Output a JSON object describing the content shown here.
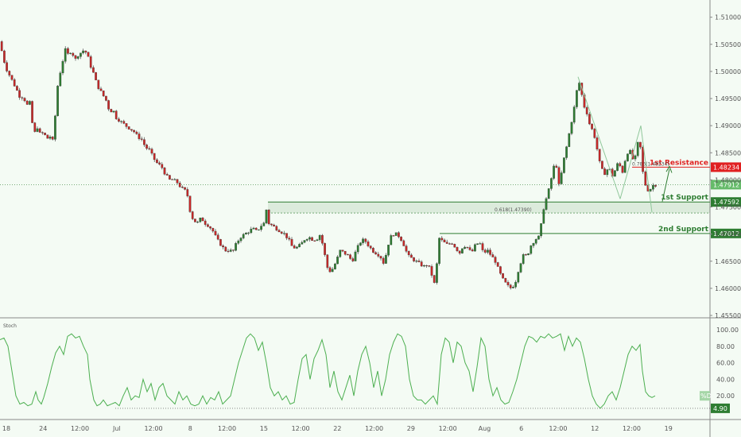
{
  "chart_data": {
    "type": "candlestick",
    "y_ticks": [
      "1.51000",
      "1.50500",
      "1.50000",
      "1.49500",
      "1.49000",
      "1.48500",
      "1.48000",
      "1.47500",
      "1.47000",
      "1.46500",
      "1.46000",
      "1.45500"
    ],
    "ylim": [
      1.455,
      1.512
    ],
    "x_ticks": [
      "18",
      "24",
      "12:00",
      "Jul",
      "12:00",
      "8",
      "12:00",
      "15",
      "12:00",
      "22",
      "12:00",
      "29",
      "12:00",
      "Aug",
      "6",
      "12:00",
      "12",
      "12:00",
      "19"
    ],
    "price_path": [
      [
        0,
        1.5055
      ],
      [
        3,
        1.505
      ],
      [
        5,
        1.503
      ],
      [
        10,
        1.5005
      ],
      [
        15,
        1.499
      ],
      [
        20,
        1.4975
      ],
      [
        25,
        1.496
      ],
      [
        28,
        1.495
      ],
      [
        31,
        1.4955
      ],
      [
        35,
        1.494
      ],
      [
        38,
        1.4935
      ],
      [
        40,
        1.4945
      ],
      [
        42,
        1.491
      ],
      [
        45,
        1.4885
      ],
      [
        50,
        1.49
      ],
      [
        53,
        1.488
      ],
      [
        57,
        1.489
      ],
      [
        60,
        1.4875
      ],
      [
        65,
        1.488
      ],
      [
        69,
        1.487
      ],
      [
        72,
        1.493
      ],
      [
        75,
        1.498
      ],
      [
        78,
        1.5
      ],
      [
        81,
        1.502
      ],
      [
        84,
        1.504
      ],
      [
        88,
        1.503
      ],
      [
        92,
        1.504
      ],
      [
        96,
        1.502
      ],
      [
        100,
        1.503
      ],
      [
        104,
        1.5035
      ],
      [
        108,
        1.504
      ],
      [
        112,
        1.503
      ],
      [
        116,
        1.501
      ],
      [
        120,
        1.4995
      ],
      [
        124,
        1.4975
      ],
      [
        128,
        1.4965
      ],
      [
        132,
        1.4955
      ],
      [
        136,
        1.4945
      ],
      [
        140,
        1.4925
      ],
      [
        144,
        1.493
      ],
      [
        148,
        1.4915
      ],
      [
        152,
        1.491
      ],
      [
        156,
        1.4905
      ],
      [
        160,
        1.49
      ],
      [
        165,
        1.4895
      ],
      [
        170,
        1.489
      ],
      [
        175,
        1.488
      ],
      [
        180,
        1.4875
      ],
      [
        185,
        1.486
      ],
      [
        190,
        1.4855
      ],
      [
        195,
        1.484
      ],
      [
        200,
        1.483
      ],
      [
        205,
        1.4825
      ],
      [
        210,
        1.481
      ],
      [
        215,
        1.48
      ],
      [
        220,
        1.48
      ],
      [
        225,
        1.4795
      ],
      [
        230,
        1.4785
      ],
      [
        235,
        1.478
      ],
      [
        238,
        1.477
      ],
      [
        242,
        1.4735
      ],
      [
        246,
        1.4725
      ],
      [
        250,
        1.472
      ],
      [
        255,
        1.473
      ],
      [
        260,
        1.472
      ],
      [
        265,
        1.4715
      ],
      [
        270,
        1.4705
      ],
      [
        275,
        1.469
      ],
      [
        280,
        1.468
      ],
      [
        285,
        1.467
      ],
      [
        290,
        1.467
      ],
      [
        295,
        1.4668
      ],
      [
        300,
        1.4685
      ],
      [
        305,
        1.4695
      ],
      [
        310,
        1.47
      ],
      [
        315,
        1.4705
      ],
      [
        320,
        1.471
      ],
      [
        325,
        1.4705
      ],
      [
        330,
        1.4715
      ],
      [
        334,
        1.472
      ],
      [
        337,
        1.4745
      ],
      [
        340,
        1.472
      ],
      [
        345,
        1.4715
      ],
      [
        350,
        1.471
      ],
      [
        355,
        1.4705
      ],
      [
        360,
        1.47
      ],
      [
        365,
        1.469
      ],
      [
        370,
        1.4675
      ],
      [
        375,
        1.4675
      ],
      [
        380,
        1.468
      ],
      [
        385,
        1.469
      ],
      [
        390,
        1.4695
      ],
      [
        395,
        1.469
      ],
      [
        400,
        1.469
      ],
      [
        405,
        1.47
      ],
      [
        410,
        1.4665
      ],
      [
        415,
        1.463
      ],
      [
        420,
        1.4635
      ],
      [
        425,
        1.465
      ],
      [
        430,
        1.467
      ],
      [
        435,
        1.4665
      ],
      [
        440,
        1.466
      ],
      [
        445,
        1.465
      ],
      [
        450,
        1.467
      ],
      [
        455,
        1.4685
      ],
      [
        460,
        1.469
      ],
      [
        465,
        1.468
      ],
      [
        470,
        1.467
      ],
      [
        475,
        1.4665
      ],
      [
        480,
        1.466
      ],
      [
        485,
        1.4645
      ],
      [
        490,
        1.468
      ],
      [
        495,
        1.47
      ],
      [
        500,
        1.47
      ],
      [
        505,
        1.4695
      ],
      [
        510,
        1.468
      ],
      [
        515,
        1.466
      ],
      [
        520,
        1.4655
      ],
      [
        525,
        1.465
      ],
      [
        530,
        1.4645
      ],
      [
        535,
        1.464
      ],
      [
        540,
        1.4645
      ],
      [
        545,
        1.4625
      ],
      [
        550,
        1.46
      ],
      [
        553,
        1.4695
      ],
      [
        556,
        1.469
      ],
      [
        560,
        1.4685
      ],
      [
        565,
        1.468
      ],
      [
        570,
        1.4685
      ],
      [
        575,
        1.4675
      ],
      [
        580,
        1.4665
      ],
      [
        585,
        1.468
      ],
      [
        590,
        1.4675
      ],
      [
        595,
        1.4665
      ],
      [
        600,
        1.468
      ],
      [
        605,
        1.4685
      ],
      [
        610,
        1.4665
      ],
      [
        615,
        1.467
      ],
      [
        620,
        1.466
      ],
      [
        625,
        1.465
      ],
      [
        630,
        1.463
      ],
      [
        635,
        1.4615
      ],
      [
        640,
        1.4605
      ],
      [
        645,
        1.46
      ],
      [
        650,
        1.461
      ],
      [
        655,
        1.464
      ],
      [
        660,
        1.466
      ],
      [
        665,
        1.466
      ],
      [
        670,
        1.468
      ],
      [
        675,
        1.469
      ],
      [
        680,
        1.4695
      ],
      [
        683,
        1.472
      ],
      [
        686,
        1.475
      ],
      [
        689,
        1.4765
      ],
      [
        692,
        1.478
      ],
      [
        695,
        1.48
      ],
      [
        698,
        1.482
      ],
      [
        701,
        1.484
      ],
      [
        704,
        1.4785
      ],
      [
        707,
        1.48
      ],
      [
        710,
        1.483
      ],
      [
        713,
        1.485
      ],
      [
        716,
        1.487
      ],
      [
        719,
        1.4895
      ],
      [
        722,
        1.4915
      ],
      [
        725,
        1.494
      ],
      [
        728,
        1.497
      ],
      [
        731,
        1.498
      ],
      [
        734,
        1.4955
      ],
      [
        737,
        1.4935
      ],
      [
        740,
        1.4925
      ],
      [
        743,
        1.4905
      ],
      [
        746,
        1.4895
      ],
      [
        749,
        1.4885
      ],
      [
        752,
        1.4865
      ],
      [
        755,
        1.484
      ],
      [
        758,
        1.482
      ],
      [
        761,
        1.4815
      ],
      [
        764,
        1.481
      ],
      [
        767,
        1.4825
      ],
      [
        770,
        1.4815
      ],
      [
        773,
        1.4805
      ],
      [
        776,
        1.482
      ],
      [
        779,
        1.483
      ],
      [
        782,
        1.4825
      ],
      [
        785,
        1.4815
      ],
      [
        788,
        1.4835
      ],
      [
        791,
        1.485
      ],
      [
        794,
        1.4855
      ],
      [
        797,
        1.484
      ],
      [
        800,
        1.4835
      ],
      [
        803,
        1.4855
      ],
      [
        806,
        1.4885
      ],
      [
        809,
        1.483
      ],
      [
        812,
        1.48
      ],
      [
        815,
        1.4785
      ],
      [
        818,
        1.478
      ],
      [
        821,
        1.4785
      ],
      [
        824,
        1.4791
      ]
    ],
    "stoch_path": [
      [
        0,
        88
      ],
      [
        5,
        90
      ],
      [
        10,
        80
      ],
      [
        15,
        50
      ],
      [
        20,
        20
      ],
      [
        25,
        10
      ],
      [
        30,
        12
      ],
      [
        35,
        8
      ],
      [
        40,
        10
      ],
      [
        45,
        25
      ],
      [
        48,
        15
      ],
      [
        52,
        10
      ],
      [
        55,
        18
      ],
      [
        60,
        35
      ],
      [
        65,
        55
      ],
      [
        70,
        72
      ],
      [
        75,
        80
      ],
      [
        80,
        70
      ],
      [
        85,
        92
      ],
      [
        90,
        95
      ],
      [
        95,
        90
      ],
      [
        100,
        92
      ],
      [
        105,
        80
      ],
      [
        110,
        70
      ],
      [
        113,
        40
      ],
      [
        118,
        15
      ],
      [
        122,
        8
      ],
      [
        126,
        10
      ],
      [
        130,
        15
      ],
      [
        135,
        8
      ],
      [
        140,
        10
      ],
      [
        145,
        12
      ],
      [
        150,
        8
      ],
      [
        155,
        20
      ],
      [
        160,
        30
      ],
      [
        165,
        15
      ],
      [
        170,
        20
      ],
      [
        175,
        18
      ],
      [
        180,
        40
      ],
      [
        185,
        25
      ],
      [
        190,
        35
      ],
      [
        195,
        15
      ],
      [
        200,
        30
      ],
      [
        205,
        35
      ],
      [
        210,
        20
      ],
      [
        215,
        15
      ],
      [
        220,
        10
      ],
      [
        225,
        25
      ],
      [
        230,
        15
      ],
      [
        235,
        20
      ],
      [
        240,
        10
      ],
      [
        245,
        8
      ],
      [
        250,
        10
      ],
      [
        255,
        20
      ],
      [
        260,
        10
      ],
      [
        265,
        18
      ],
      [
        270,
        15
      ],
      [
        275,
        25
      ],
      [
        280,
        10
      ],
      [
        285,
        15
      ],
      [
        290,
        20
      ],
      [
        295,
        40
      ],
      [
        300,
        60
      ],
      [
        305,
        75
      ],
      [
        310,
        90
      ],
      [
        315,
        95
      ],
      [
        320,
        90
      ],
      [
        325,
        75
      ],
      [
        330,
        85
      ],
      [
        335,
        60
      ],
      [
        340,
        30
      ],
      [
        345,
        20
      ],
      [
        350,
        25
      ],
      [
        355,
        15
      ],
      [
        360,
        20
      ],
      [
        365,
        10
      ],
      [
        370,
        12
      ],
      [
        375,
        40
      ],
      [
        380,
        65
      ],
      [
        385,
        70
      ],
      [
        390,
        40
      ],
      [
        395,
        65
      ],
      [
        400,
        75
      ],
      [
        405,
        88
      ],
      [
        410,
        70
      ],
      [
        415,
        30
      ],
      [
        420,
        50
      ],
      [
        425,
        25
      ],
      [
        430,
        15
      ],
      [
        435,
        30
      ],
      [
        440,
        45
      ],
      [
        445,
        20
      ],
      [
        450,
        50
      ],
      [
        455,
        70
      ],
      [
        460,
        80
      ],
      [
        465,
        60
      ],
      [
        470,
        30
      ],
      [
        475,
        50
      ],
      [
        480,
        20
      ],
      [
        485,
        40
      ],
      [
        490,
        70
      ],
      [
        495,
        85
      ],
      [
        500,
        95
      ],
      [
        505,
        92
      ],
      [
        510,
        80
      ],
      [
        515,
        40
      ],
      [
        520,
        20
      ],
      [
        525,
        15
      ],
      [
        530,
        15
      ],
      [
        535,
        10
      ],
      [
        540,
        15
      ],
      [
        545,
        20
      ],
      [
        550,
        10
      ],
      [
        555,
        70
      ],
      [
        560,
        90
      ],
      [
        565,
        85
      ],
      [
        570,
        60
      ],
      [
        575,
        85
      ],
      [
        580,
        80
      ],
      [
        585,
        60
      ],
      [
        590,
        50
      ],
      [
        595,
        25
      ],
      [
        600,
        55
      ],
      [
        605,
        90
      ],
      [
        610,
        80
      ],
      [
        615,
        40
      ],
      [
        620,
        20
      ],
      [
        625,
        30
      ],
      [
        630,
        15
      ],
      [
        635,
        10
      ],
      [
        640,
        12
      ],
      [
        645,
        25
      ],
      [
        650,
        40
      ],
      [
        655,
        60
      ],
      [
        660,
        80
      ],
      [
        665,
        92
      ],
      [
        670,
        90
      ],
      [
        675,
        85
      ],
      [
        680,
        92
      ],
      [
        685,
        90
      ],
      [
        690,
        95
      ],
      [
        695,
        90
      ],
      [
        700,
        92
      ],
      [
        705,
        95
      ],
      [
        710,
        75
      ],
      [
        715,
        92
      ],
      [
        720,
        80
      ],
      [
        725,
        90
      ],
      [
        730,
        85
      ],
      [
        735,
        65
      ],
      [
        740,
        40
      ],
      [
        745,
        20
      ],
      [
        750,
        10
      ],
      [
        755,
        5
      ],
      [
        760,
        10
      ],
      [
        765,
        20
      ],
      [
        770,
        25
      ],
      [
        775,
        15
      ],
      [
        780,
        30
      ],
      [
        785,
        50
      ],
      [
        790,
        70
      ],
      [
        795,
        80
      ],
      [
        800,
        75
      ],
      [
        805,
        82
      ],
      [
        808,
        50
      ],
      [
        812,
        25
      ],
      [
        816,
        20
      ],
      [
        820,
        18
      ],
      [
        824,
        20
      ]
    ],
    "levels": [
      {
        "price": 1.48234,
        "label": "1st Resistance",
        "value": "1.48234",
        "color": "#e02020"
      },
      {
        "price": 1.47592,
        "label": "1st Support",
        "value": "1.47592",
        "color": "#2e7d32"
      },
      {
        "price": 1.47012,
        "label": "2nd Support",
        "value": "1.47012",
        "color": "#2e7d32"
      }
    ],
    "current_price": {
      "price": 1.47912,
      "value": "1.47912"
    },
    "fib_labels": [
      {
        "price": 1.4739,
        "text": "0.618(1.47390)"
      },
      {
        "price": 1.48234,
        "text": "0.786(1.48234)"
      }
    ],
    "stoch": {
      "label": "Stoch",
      "y_ticks": [
        "100.00",
        "80.00",
        "60.00",
        "40.00",
        "20.00"
      ],
      "ylim": [
        0,
        100
      ],
      "current": "4.90",
      "current_value": 4.9,
      "k_badge": "%D",
      "k_value": 20
    }
  }
}
